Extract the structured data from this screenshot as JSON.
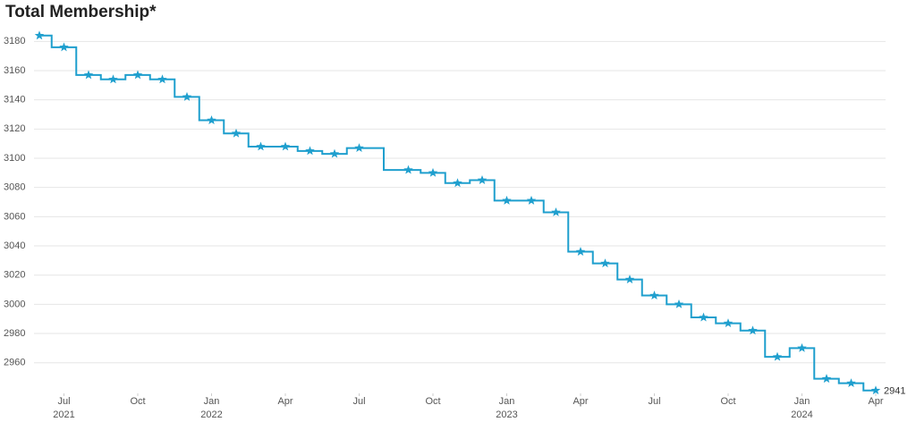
{
  "chart_data": {
    "type": "step-line",
    "title": "Total Membership*",
    "x": [
      "2021-06",
      "2021-07",
      "2021-08",
      "2021-09",
      "2021-10",
      "2021-11",
      "2021-12",
      "2022-01",
      "2022-02",
      "2022-03",
      "2022-04",
      "2022-05",
      "2022-06",
      "2022-07",
      "2022-09",
      "2022-10",
      "2022-11",
      "2022-12",
      "2023-01",
      "2023-02",
      "2023-03",
      "2023-04",
      "2023-05",
      "2023-06",
      "2023-07",
      "2023-08",
      "2023-09",
      "2023-10",
      "2023-11",
      "2023-12",
      "2024-01",
      "2024-02",
      "2024-03",
      "2024-04"
    ],
    "series": [
      {
        "name": "Total Membership",
        "color": "#1f9fce",
        "values": [
          3184,
          3176,
          3157,
          3154,
          3157,
          3154,
          3142,
          3126,
          3117,
          3108,
          3108,
          3105,
          3103,
          3107,
          3092,
          3090,
          3083,
          3085,
          3071,
          3071,
          3063,
          3036,
          3028,
          3017,
          3006,
          3000,
          2991,
          2987,
          2982,
          2964,
          2970,
          2949,
          2946,
          2941
        ]
      }
    ],
    "xlim": [
      "2021-06",
      "2024-04"
    ],
    "xticks": [
      {
        "value": "2021-07",
        "label": "Jul",
        "year": "2021"
      },
      {
        "value": "2021-10",
        "label": "Oct"
      },
      {
        "value": "2022-01",
        "label": "Jan",
        "year": "2022"
      },
      {
        "value": "2022-04",
        "label": "Apr"
      },
      {
        "value": "2022-07",
        "label": "Jul"
      },
      {
        "value": "2022-10",
        "label": "Oct"
      },
      {
        "value": "2023-01",
        "label": "Jan",
        "year": "2023"
      },
      {
        "value": "2023-04",
        "label": "Apr"
      },
      {
        "value": "2023-07",
        "label": "Jul"
      },
      {
        "value": "2023-10",
        "label": "Oct"
      },
      {
        "value": "2024-01",
        "label": "Jan",
        "year": "2024"
      },
      {
        "value": "2024-04",
        "label": "Apr"
      }
    ],
    "ylim": [
      2939,
      3190
    ],
    "yticks": [
      2960,
      2980,
      3000,
      3020,
      3040,
      3060,
      3080,
      3100,
      3120,
      3140,
      3160,
      3180
    ],
    "grid": true
  }
}
